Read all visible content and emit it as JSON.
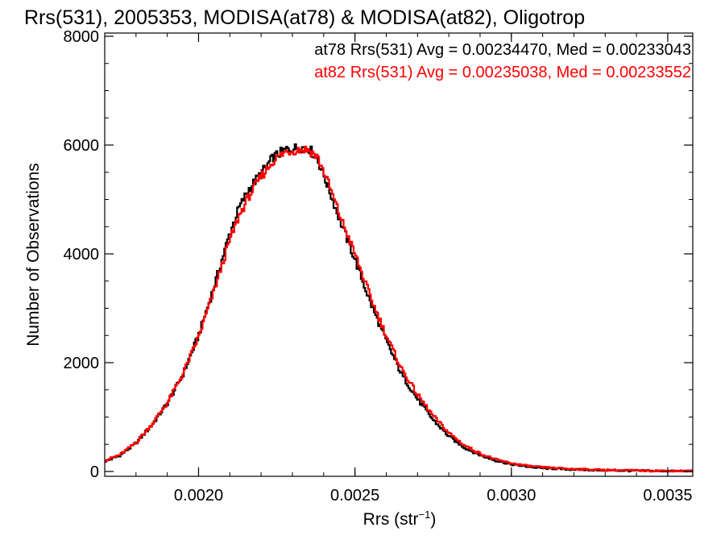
{
  "chart_data": {
    "type": "line",
    "title": "Rrs(531), 2005353, MODISA(at78) & MODISA(at82), Oligotrop",
    "xlabel_main": "Rrs (str",
    "xlabel_sup": "−1",
    "xlabel_close": ")",
    "ylabel": "Number of Observations",
    "xlim": [
      0.0017,
      0.00358
    ],
    "ylim": [
      0,
      8000
    ],
    "x_ticks": [
      0.002,
      0.0025,
      0.003,
      0.0035
    ],
    "x_tick_labels": [
      "0.0020",
      "0.0025",
      "0.0030",
      "0.0035"
    ],
    "y_ticks": [
      0,
      2000,
      4000,
      6000,
      8000
    ],
    "y_tick_labels": [
      "0",
      "2000",
      "4000",
      "6000",
      "8000"
    ],
    "grid": false,
    "legend_position": "top-right",
    "legend": [
      "at78 Rrs(531) Avg = 0.00234470, Med = 0.00233043",
      "at82 Rrs(531) Avg = 0.00235038, Med = 0.00233552"
    ],
    "series": [
      {
        "name": "at78",
        "color": "#000000",
        "points": [
          [
            0.0017,
            180
          ],
          [
            0.00175,
            300
          ],
          [
            0.0018,
            520
          ],
          [
            0.00185,
            850
          ],
          [
            0.0019,
            1250
          ],
          [
            0.00195,
            1780
          ],
          [
            0.002,
            2500
          ],
          [
            0.00205,
            3400
          ],
          [
            0.0021,
            4380
          ],
          [
            0.00213,
            4850
          ],
          [
            0.00216,
            5180
          ],
          [
            0.0022,
            5480
          ],
          [
            0.00224,
            5780
          ],
          [
            0.00228,
            5920
          ],
          [
            0.00232,
            5950
          ],
          [
            0.00235,
            5960
          ],
          [
            0.00238,
            5750
          ],
          [
            0.00241,
            5300
          ],
          [
            0.00245,
            4650
          ],
          [
            0.0025,
            3900
          ],
          [
            0.00255,
            3100
          ],
          [
            0.0026,
            2400
          ],
          [
            0.00265,
            1780
          ],
          [
            0.0027,
            1330
          ],
          [
            0.00275,
            950
          ],
          [
            0.0028,
            650
          ],
          [
            0.00285,
            440
          ],
          [
            0.0029,
            300
          ],
          [
            0.00295,
            200
          ],
          [
            0.003,
            130
          ],
          [
            0.00305,
            90
          ],
          [
            0.0031,
            60
          ],
          [
            0.0032,
            35
          ],
          [
            0.0033,
            20
          ],
          [
            0.0034,
            12
          ],
          [
            0.0035,
            8
          ],
          [
            0.00358,
            5
          ]
        ]
      },
      {
        "name": "at82",
        "color": "#ff0000",
        "points": [
          [
            0.0017,
            200
          ],
          [
            0.00175,
            310
          ],
          [
            0.0018,
            530
          ],
          [
            0.00185,
            860
          ],
          [
            0.0019,
            1260
          ],
          [
            0.00195,
            1790
          ],
          [
            0.002,
            2470
          ],
          [
            0.00205,
            3330
          ],
          [
            0.0021,
            4250
          ],
          [
            0.00213,
            4700
          ],
          [
            0.00216,
            5050
          ],
          [
            0.0022,
            5420
          ],
          [
            0.00224,
            5720
          ],
          [
            0.00228,
            5880
          ],
          [
            0.00232,
            5920
          ],
          [
            0.00235,
            5920
          ],
          [
            0.00238,
            5780
          ],
          [
            0.00241,
            5380
          ],
          [
            0.00245,
            4730
          ],
          [
            0.0025,
            4000
          ],
          [
            0.00255,
            3200
          ],
          [
            0.0026,
            2500
          ],
          [
            0.00265,
            1880
          ],
          [
            0.0027,
            1410
          ],
          [
            0.00275,
            1020
          ],
          [
            0.0028,
            710
          ],
          [
            0.00285,
            480
          ],
          [
            0.0029,
            330
          ],
          [
            0.00295,
            220
          ],
          [
            0.003,
            150
          ],
          [
            0.00305,
            105
          ],
          [
            0.0031,
            75
          ],
          [
            0.0032,
            45
          ],
          [
            0.0033,
            28
          ],
          [
            0.0034,
            18
          ],
          [
            0.0035,
            12
          ],
          [
            0.00358,
            8
          ]
        ]
      }
    ]
  }
}
